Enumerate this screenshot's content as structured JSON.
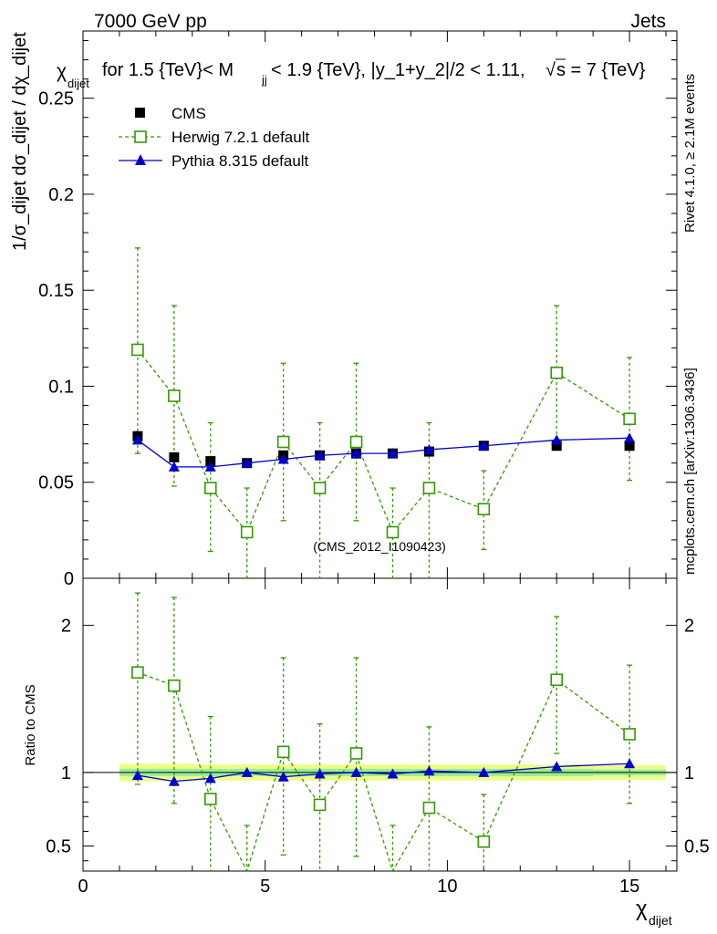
{
  "header": {
    "left": "7000 GeV pp",
    "right": "Jets"
  },
  "title": "for 1.5 {TeV}< M",
  "title_sub": "jj",
  "title_rest": " < 1.9 {TeV}, |y_1+y_2|/2 < 1.11,",
  "title_sqrt": "s = 7 {TeV}",
  "side_label_rivet": "Rivet 4.1.0, ≥ 2.1M events",
  "side_label_mcplots": "mcplots.cern.ch [arXiv:1306.3436]",
  "watermark": "(CMS_2012_I1090423)",
  "ylabel_main": {
    "num_var": "χ",
    "num_sub": "dijet",
    "full": "1/σ_dijet dσ_dijet / dχ_dijet"
  },
  "ylabel_ratio": "Ratio to CMS",
  "xlabel": {
    "sym": "χ",
    "sub": "dijet"
  },
  "colors": {
    "cms": "#000000",
    "herwig": "#339900",
    "pythia": "#0000cc",
    "band_inner": "#99ee99",
    "band_outer": "#eeff88"
  },
  "chart_data": {
    "type": "scatter",
    "x_range": [
      0,
      16.3
    ],
    "x_ticks": [
      0,
      5,
      10,
      15
    ],
    "main": {
      "ylim": [
        0,
        0.285
      ],
      "y_ticks": [
        0,
        0.05,
        0.1,
        0.15,
        0.2,
        0.25
      ],
      "y_tick_labels": [
        "0",
        "0.05",
        "0.1",
        "0.15",
        "0.2",
        "0.25"
      ]
    },
    "ratio": {
      "ylim": [
        0.33,
        2.32
      ],
      "y_ticks": [
        0.5,
        1,
        2
      ],
      "y_tick_labels": [
        "0.5",
        "1",
        "2"
      ]
    },
    "series": [
      {
        "name": "CMS",
        "style": "data",
        "x": [
          1.5,
          2.5,
          3.5,
          4.5,
          5.5,
          6.5,
          7.5,
          8.5,
          9.5,
          11,
          13,
          15
        ],
        "xerr": [
          0.5,
          0.5,
          0.5,
          0.5,
          0.5,
          0.5,
          0.5,
          0.5,
          0.5,
          1,
          1,
          1
        ],
        "y": [
          0.074,
          0.063,
          0.061,
          0.06,
          0.064,
          0.064,
          0.065,
          0.065,
          0.066,
          0.069,
          0.069,
          0.069
        ],
        "ratio_band_inner": [
          0.025,
          0.025,
          0.025,
          0.025,
          0.025,
          0.025,
          0.025,
          0.025,
          0.025,
          0.025,
          0.025,
          0.02
        ],
        "ratio_band_outer": [
          0.06,
          0.06,
          0.055,
          0.055,
          0.055,
          0.055,
          0.055,
          0.055,
          0.055,
          0.055,
          0.055,
          0.05
        ]
      },
      {
        "name": "Herwig 7.2.1 default",
        "style": "herwig",
        "x": [
          1.5,
          2.5,
          3.5,
          4.5,
          5.5,
          6.5,
          7.5,
          8.5,
          9.5,
          11,
          13,
          15
        ],
        "y": [
          0.119,
          0.095,
          0.047,
          0.024,
          0.071,
          0.047,
          0.071,
          0.024,
          0.047,
          0.036,
          0.107,
          0.083
        ],
        "y_err_up": [
          0.053,
          0.047,
          0.034,
          0.023,
          0.041,
          0.034,
          0.041,
          0.023,
          0.034,
          0.02,
          0.035,
          0.032
        ],
        "y_err_down": [
          0.054,
          0.047,
          0.033,
          0.024,
          0.041,
          0.047,
          0.041,
          0.024,
          0.047,
          0.021,
          0.035,
          0.032
        ],
        "ratio": [
          1.68,
          1.59,
          0.82,
          0.24,
          1.14,
          0.78,
          1.13,
          0.24,
          0.76,
          0.53,
          1.63,
          1.26
        ],
        "ratio_err_up": [
          0.54,
          0.6,
          0.56,
          0.4,
          0.64,
          0.55,
          0.65,
          0.4,
          0.55,
          0.32,
          0.43,
          0.47
        ],
        "ratio_err_down": [
          0.76,
          0.8,
          0.6,
          0.3,
          0.7,
          0.6,
          0.7,
          0.3,
          0.5,
          0.3,
          0.5,
          0.47
        ]
      },
      {
        "name": "Pythia 8.315 default",
        "style": "pythia",
        "x": [
          1.5,
          2.5,
          3.5,
          4.5,
          5.5,
          6.5,
          7.5,
          8.5,
          9.5,
          11,
          13,
          15
        ],
        "y": [
          0.072,
          0.058,
          0.058,
          0.06,
          0.062,
          0.064,
          0.065,
          0.065,
          0.067,
          0.069,
          0.072,
          0.073
        ],
        "ratio": [
          0.98,
          0.94,
          0.96,
          1.0,
          0.97,
          0.99,
          1.0,
          0.99,
          1.01,
          1.0,
          1.04,
          1.06
        ],
        "ratio_err": [
          0.02,
          0.02,
          0.02,
          0.02,
          0.03,
          0.02,
          0.02,
          0.02,
          0.02,
          0.01,
          0.01,
          0.01
        ]
      }
    ]
  }
}
